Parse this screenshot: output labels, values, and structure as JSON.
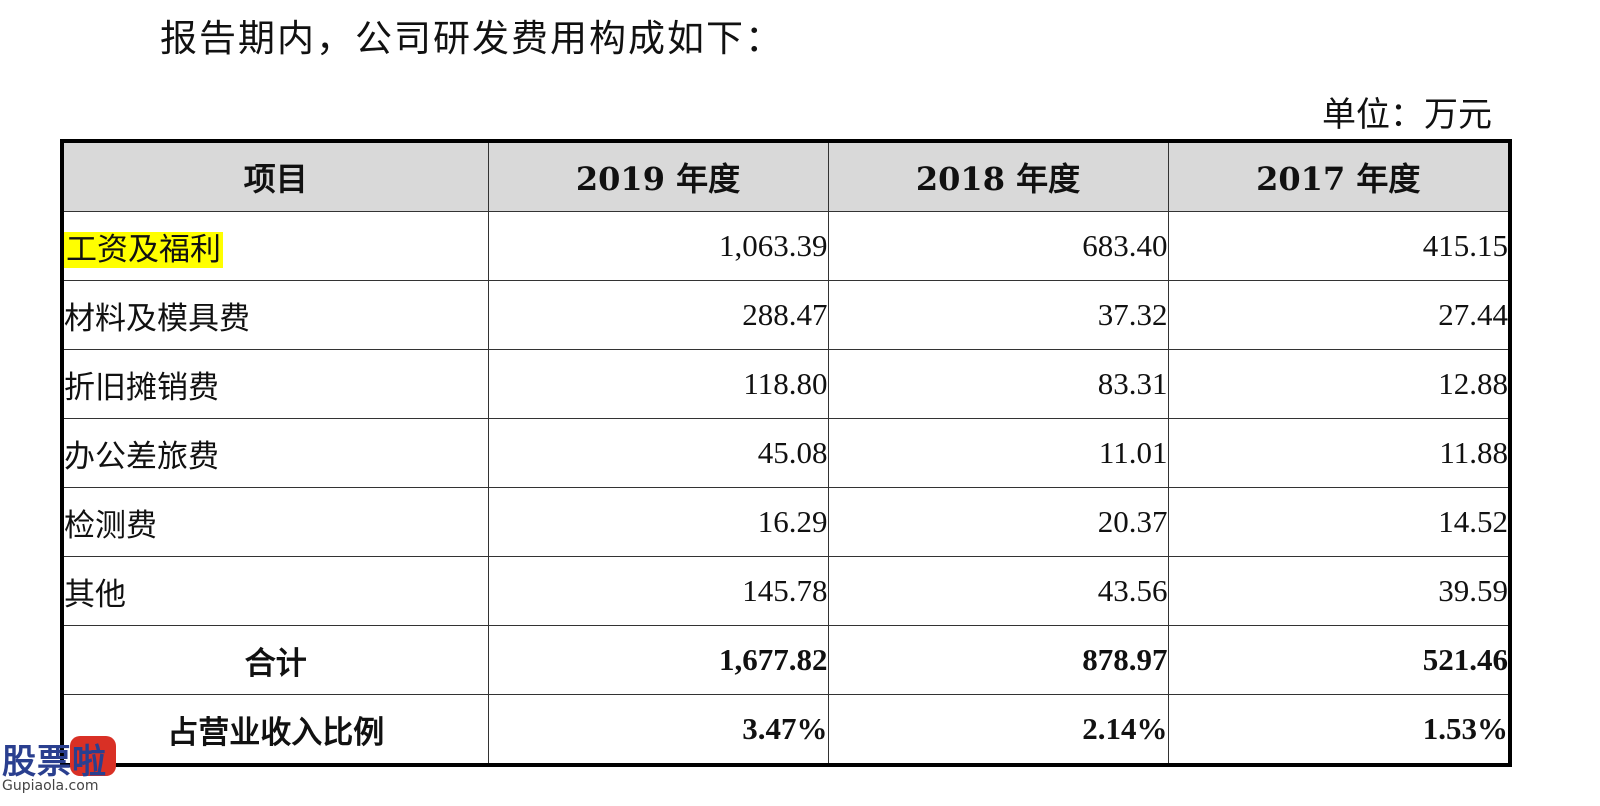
{
  "intro": "报告期内，公司研发费用构成如下：",
  "unit": "单位：万元",
  "table": {
    "headers": [
      "项目",
      "2019 年度",
      "2018 年度",
      "2017 年度"
    ],
    "rows": [
      {
        "label": "工资及福利",
        "v2019": "1,063.39",
        "v2018": "683.40",
        "v2017": "415.15"
      },
      {
        "label": "材料及模具费",
        "v2019": "288.47",
        "v2018": "37.32",
        "v2017": "27.44"
      },
      {
        "label": "折旧摊销费",
        "v2019": "118.80",
        "v2018": "83.31",
        "v2017": "12.88"
      },
      {
        "label": "办公差旅费",
        "v2019": "45.08",
        "v2018": "11.01",
        "v2017": "11.88"
      },
      {
        "label": "检测费",
        "v2019": "16.29",
        "v2018": "20.37",
        "v2017": "14.52"
      },
      {
        "label": "其他",
        "v2019": "145.78",
        "v2018": "43.56",
        "v2017": "39.59"
      },
      {
        "label": "合计",
        "v2019": "1,677.82",
        "v2018": "878.97",
        "v2017": "521.46"
      },
      {
        "label": "占营业收入比例",
        "v2019": "3.47%",
        "v2018": "2.14%",
        "v2017": "1.53%"
      }
    ]
  },
  "watermark": {
    "logo_text": "股票啦",
    "url": "Gupiaola.com"
  },
  "colors": {
    "highlight": "#ffff00",
    "header_bg": "#d9d9d9"
  }
}
